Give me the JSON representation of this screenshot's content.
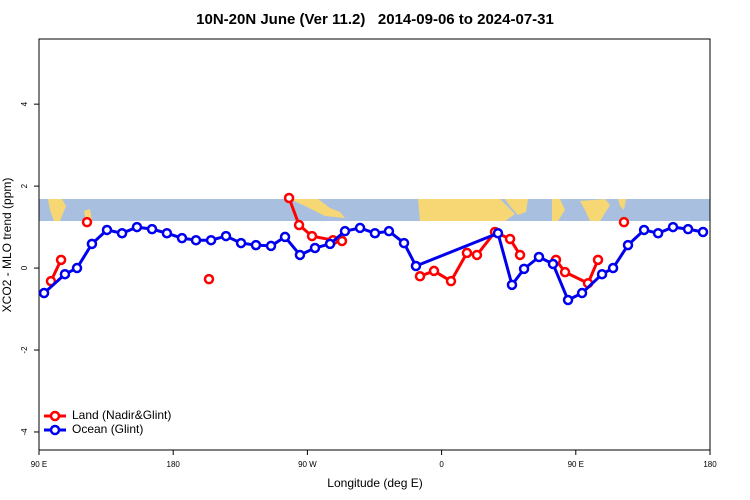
{
  "chart_data": {
    "type": "line",
    "title": "10N-20N June (Ver 11.2)   2014-09-06 to 2024-07-31",
    "x_label": "Longitude (deg E)",
    "y_label": "XCO2 - MLO trend (ppm)",
    "xlim": [
      90,
      540
    ],
    "xticks": [
      {
        "value": 90,
        "label": "90 E"
      },
      180,
      {
        "value": 270,
        "label": "90 W"
      },
      {
        "value": 360,
        "label": "0"
      },
      {
        "value": 450,
        "label": "90 E"
      },
      {
        "value": 540,
        "label": "180"
      }
    ],
    "ylim": [
      -4.44,
      5.59
    ],
    "yticks": [
      -4,
      -2,
      0,
      2,
      4
    ],
    "legend": "bottom-left",
    "series": [
      {
        "name": "Land (Nadir&Glint)",
        "color": "#ff0000",
        "x": [
          98.0,
          104.8,
          null,
          122.2,
          null,
          204.0,
          null,
          257.7,
          264.4,
          273.1,
          287.2,
          293.2,
          null,
          345.5,
          354.9,
          366.3,
          377.0,
          383.7,
          395.8,
          405.9,
          412.6,
          null,
          436.7,
          442.8,
          458.2,
          464.9,
          null,
          482.3
        ],
        "values": [
          -0.32,
          0.2,
          null,
          1.12,
          null,
          -0.27,
          null,
          1.71,
          1.05,
          0.78,
          0.68,
          0.66,
          null,
          -0.2,
          -0.07,
          -0.32,
          0.37,
          0.32,
          0.88,
          0.71,
          0.32,
          null,
          0.2,
          -0.1,
          -0.37,
          0.2,
          null,
          1.12
        ]
      },
      {
        "name": "Ocean (Glint)",
        "color": "#0000ee",
        "x": [
          93.4,
          107.4,
          115.5,
          125.5,
          135.6,
          145.7,
          155.7,
          165.8,
          175.8,
          185.9,
          195.3,
          205.4,
          215.4,
          225.5,
          235.5,
          245.6,
          255.0,
          265.0,
          275.1,
          285.2,
          295.2,
          305.3,
          315.3,
          324.7,
          334.8,
          342.8,
          397.8,
          407.2,
          415.3,
          425.3,
          434.7,
          444.8,
          454.2,
          467.6,
          475.0,
          485.0,
          495.8,
          505.2,
          515.2,
          525.3,
          535.3
        ],
        "values": [
          -0.61,
          -0.15,
          0.0,
          0.59,
          0.93,
          0.85,
          1.0,
          0.95,
          0.85,
          0.73,
          0.68,
          0.68,
          0.78,
          0.61,
          0.56,
          0.54,
          0.76,
          0.32,
          0.49,
          0.59,
          0.9,
          0.98,
          0.85,
          0.9,
          0.61,
          0.05,
          0.85,
          -0.41,
          -0.02,
          0.27,
          0.1,
          -0.78,
          -0.61,
          -0.15,
          0.0,
          0.56,
          0.93,
          0.85,
          1.0,
          0.95,
          0.88
        ]
      }
    ]
  }
}
